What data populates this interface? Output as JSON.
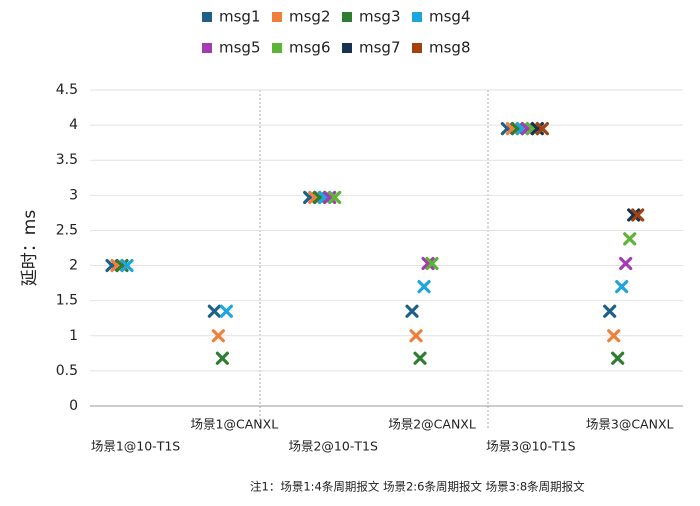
{
  "chart_data": {
    "type": "scatter",
    "y_label": "延时：ms",
    "note": "注1：场景1:4条周期报文 场景2:6条周期报文 场景3:8条周期报文",
    "categories": [
      "场景1@10-T1S",
      "场景1@CANXL",
      "场景2@10-T1S",
      "场景2@CANXL",
      "场景3@10-T1S",
      "场景3@CANXL"
    ],
    "series": [
      {
        "name": "msg1",
        "color": "#1f6089",
        "values": [
          2,
          1.35,
          2.97,
          1.35,
          3.95,
          1.35
        ]
      },
      {
        "name": "msg2",
        "color": "#f07f3c",
        "values": [
          2,
          1.0,
          2.97,
          1.0,
          3.95,
          1.0
        ]
      },
      {
        "name": "msg3",
        "color": "#2e7d32",
        "values": [
          2,
          0.68,
          2.97,
          0.68,
          3.95,
          0.68
        ]
      },
      {
        "name": "msg4",
        "color": "#1ea5dc",
        "values": [
          2,
          1.35,
          2.97,
          1.7,
          3.95,
          1.7
        ]
      },
      {
        "name": "msg5",
        "color": "#a43bb0",
        "values": [
          null,
          null,
          2.97,
          2.03,
          3.95,
          2.03
        ]
      },
      {
        "name": "msg6",
        "color": "#5db335",
        "values": [
          null,
          null,
          2.97,
          2.03,
          3.95,
          2.38
        ]
      },
      {
        "name": "msg7",
        "color": "#17334f",
        "values": [
          null,
          null,
          null,
          null,
          3.95,
          2.72
        ]
      },
      {
        "name": "msg8",
        "color": "#a3420f",
        "values": [
          null,
          null,
          null,
          null,
          3.95,
          2.72
        ]
      }
    ],
    "ylim": [
      0,
      4.5
    ],
    "yticks": [
      0,
      0.5,
      1,
      1.5,
      2,
      2.5,
      3,
      3.5,
      4,
      4.5
    ],
    "grid": true,
    "legend_position": "top"
  }
}
